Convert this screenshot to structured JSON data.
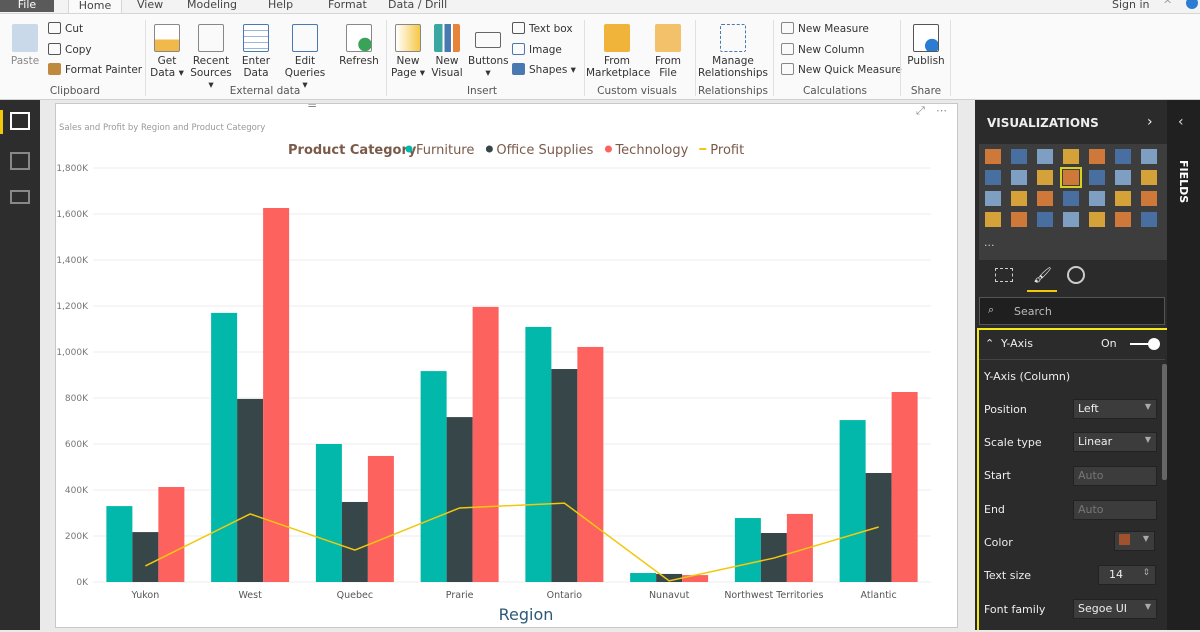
{
  "tabs": [
    "File",
    "Home",
    "View",
    "Modeling",
    "Help",
    "Format",
    "Data / Drill"
  ],
  "signin": "Sign in",
  "ribbon": {
    "clipboard": {
      "paste": "Paste",
      "cut": "Cut",
      "copy": "Copy",
      "format_painter": "Format Painter",
      "group": "Clipboard"
    },
    "external": {
      "get_data": "Get Data ▾",
      "recent": "Recent Sources ▾",
      "enter": "Enter Data",
      "edit": "Edit Queries ▾",
      "refresh": "Refresh",
      "group": "External data"
    },
    "insert": {
      "new_page": "New Page ▾",
      "new_visual": "New Visual",
      "buttons": "Buttons ▾",
      "textbox": "Text box",
      "image": "Image",
      "shapes": "Shapes ▾",
      "group": "Insert"
    },
    "custom": {
      "marketplace": "From Marketplace",
      "file": "From File",
      "group": "Custom visuals"
    },
    "relationships": {
      "manage": "Manage Relationships",
      "group": "Relationships"
    },
    "calc": {
      "measure": "New Measure",
      "column": "New Column",
      "quick": "New Quick Measure",
      "group": "Calculations"
    },
    "share": {
      "publish": "Publish",
      "group": "Share"
    }
  },
  "panel": {
    "title": "VISUALIZATIONS",
    "fields": "FIELDS",
    "more": "...",
    "search_placeholder": "Search",
    "section": "Y-Axis",
    "toggle": "On",
    "toggle_on": true,
    "subsection": "Y-Axis (Column)",
    "props": [
      {
        "label": "Position",
        "value": "Left"
      },
      {
        "label": "Scale type",
        "value": "Linear"
      },
      {
        "label": "Start",
        "placeholder": "Auto"
      },
      {
        "label": "End",
        "placeholder": "Auto"
      },
      {
        "label": "Color",
        "color": "#a0522d"
      },
      {
        "label": "Text size",
        "value": "14"
      },
      {
        "label": "Font family",
        "value": "Segoe UI"
      }
    ]
  },
  "chart_data": {
    "type": "bar",
    "title": "Sales and Profit by Region and Product Category",
    "legend_title": "Product Category",
    "legend_position": "top",
    "xlabel": "Region",
    "ylabel": "",
    "ylim": [
      0,
      1800000
    ],
    "yticks": [
      "0K",
      "200K",
      "400K",
      "600K",
      "800K",
      "1,000K",
      "1,200K",
      "1,400K",
      "1,600K",
      "1,800K"
    ],
    "grid": true,
    "categories": [
      "Yukon",
      "West",
      "Quebec",
      "Prarie",
      "Ontario",
      "Nunavut",
      "Northwest Territories",
      "Atlantic"
    ],
    "series": [
      {
        "name": "Furniture",
        "color": "#01b8aa",
        "values": [
          330000,
          1170000,
          600000,
          917000,
          1109000,
          39000,
          278000,
          704000
        ]
      },
      {
        "name": "Office Supplies",
        "color": "#374649",
        "values": [
          217000,
          796000,
          348000,
          717000,
          926000,
          35000,
          213000,
          474000
        ]
      },
      {
        "name": "Technology",
        "color": "#fd625e",
        "values": [
          413000,
          1626000,
          548000,
          1196000,
          1022000,
          30000,
          296000,
          826000
        ]
      },
      {
        "name": "Profit",
        "type": "line",
        "color": "#f2c80f",
        "values": [
          70000,
          296000,
          139000,
          322000,
          343000,
          5000,
          104000,
          239000
        ]
      }
    ]
  }
}
